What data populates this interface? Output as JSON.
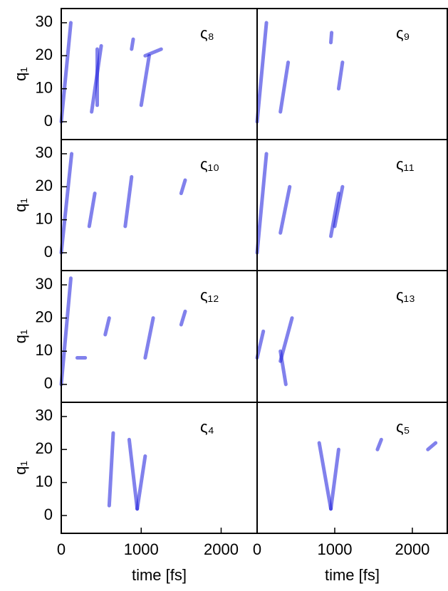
{
  "chart_data": [
    {
      "type": "density",
      "label": "ς₈",
      "ylabel": "q₁",
      "ylim": [
        -5.4,
        34.3
      ],
      "yticks": [
        0,
        10,
        20,
        30
      ],
      "xlim": [
        0,
        2450
      ],
      "color": "#1a1adc",
      "streaks": [
        {
          "x": [
            0,
            120
          ],
          "y": [
            0,
            30
          ]
        },
        {
          "x": [
            450,
            450
          ],
          "y": [
            5,
            22
          ]
        },
        {
          "x": [
            380,
            500
          ],
          "y": [
            3,
            23
          ]
        },
        {
          "x": [
            1000,
            1100
          ],
          "y": [
            5,
            20
          ]
        },
        {
          "x": [
            1050,
            1250
          ],
          "y": [
            20,
            22
          ]
        },
        {
          "x": [
            880,
            900
          ],
          "y": [
            22,
            25
          ]
        }
      ]
    },
    {
      "type": "density",
      "label": "ς₉",
      "ylim": [
        -5.4,
        34.3
      ],
      "xlim": [
        0,
        2450
      ],
      "color": "#1a1adc",
      "streaks": [
        {
          "x": [
            0,
            120
          ],
          "y": [
            0,
            30
          ]
        },
        {
          "x": [
            300,
            400
          ],
          "y": [
            3,
            18
          ]
        },
        {
          "x": [
            950,
            960
          ],
          "y": [
            24,
            27
          ]
        },
        {
          "x": [
            1050,
            1100
          ],
          "y": [
            10,
            18
          ]
        }
      ]
    },
    {
      "type": "density",
      "label": "ς₁₀",
      "ylabel": "q₁",
      "ylim": [
        -5.4,
        34.3
      ],
      "yticks": [
        0,
        10,
        20,
        30
      ],
      "xlim": [
        0,
        2450
      ],
      "color": "#1a1adc",
      "streaks": [
        {
          "x": [
            0,
            130
          ],
          "y": [
            0,
            30
          ]
        },
        {
          "x": [
            350,
            420
          ],
          "y": [
            8,
            18
          ]
        },
        {
          "x": [
            800,
            880
          ],
          "y": [
            8,
            23
          ]
        },
        {
          "x": [
            1500,
            1550
          ],
          "y": [
            18,
            22
          ]
        }
      ]
    },
    {
      "type": "density",
      "label": "ς₁₁",
      "ylim": [
        -5.4,
        34.3
      ],
      "xlim": [
        0,
        2450
      ],
      "color": "#1a1adc",
      "streaks": [
        {
          "x": [
            0,
            120
          ],
          "y": [
            0,
            30
          ]
        },
        {
          "x": [
            300,
            420
          ],
          "y": [
            6,
            20
          ]
        },
        {
          "x": [
            950,
            1050
          ],
          "y": [
            5,
            18
          ]
        },
        {
          "x": [
            1000,
            1100
          ],
          "y": [
            8,
            20
          ]
        }
      ]
    },
    {
      "type": "density",
      "label": "ς₁₂",
      "ylabel": "q₁",
      "ylim": [
        -5.4,
        34.3
      ],
      "yticks": [
        0,
        10,
        20,
        30
      ],
      "xlim": [
        0,
        2450
      ],
      "color": "#1a1adc",
      "streaks": [
        {
          "x": [
            0,
            120
          ],
          "y": [
            0,
            32
          ]
        },
        {
          "x": [
            200,
            300
          ],
          "y": [
            8,
            8
          ]
        },
        {
          "x": [
            550,
            600
          ],
          "y": [
            15,
            20
          ]
        },
        {
          "x": [
            1050,
            1150
          ],
          "y": [
            8,
            20
          ]
        },
        {
          "x": [
            1500,
            1550
          ],
          "y": [
            18,
            22
          ]
        }
      ]
    },
    {
      "type": "density",
      "label": "ς₁₃",
      "ylim": [
        -5.4,
        34.3
      ],
      "xlim": [
        0,
        2450
      ],
      "color": "#1a1adc",
      "streaks": [
        {
          "x": [
            0,
            80
          ],
          "y": [
            8,
            16
          ]
        },
        {
          "x": [
            300,
            450
          ],
          "y": [
            7,
            20
          ]
        },
        {
          "x": [
            300,
            370
          ],
          "y": [
            10,
            0
          ]
        }
      ]
    },
    {
      "type": "density",
      "label": "ς₄",
      "ylabel": "q₁",
      "xlabel": "time [fs]",
      "ylim": [
        -5.4,
        34.3
      ],
      "yticks": [
        0,
        10,
        20,
        30
      ],
      "xlim": [
        0,
        2450
      ],
      "xticks": [
        0,
        1000,
        2000
      ],
      "color": "#1a1adc",
      "streaks": [
        {
          "x": [
            850,
            950
          ],
          "y": [
            23,
            2
          ]
        },
        {
          "x": [
            950,
            1050
          ],
          "y": [
            2,
            18
          ]
        },
        {
          "x": [
            600,
            650
          ],
          "y": [
            3,
            25
          ]
        }
      ]
    },
    {
      "type": "density",
      "label": "ς₅",
      "xlabel": "time [fs]",
      "ylim": [
        -5.4,
        34.3
      ],
      "xlim": [
        0,
        2450
      ],
      "xticks": [
        0,
        1000,
        2000
      ],
      "color": "#1a1adc",
      "streaks": [
        {
          "x": [
            800,
            950
          ],
          "y": [
            22,
            2
          ]
        },
        {
          "x": [
            950,
            1050
          ],
          "y": [
            2,
            20
          ]
        },
        {
          "x": [
            1550,
            1600
          ],
          "y": [
            20,
            23
          ]
        },
        {
          "x": [
            2200,
            2300
          ],
          "y": [
            20,
            22
          ]
        }
      ]
    }
  ]
}
